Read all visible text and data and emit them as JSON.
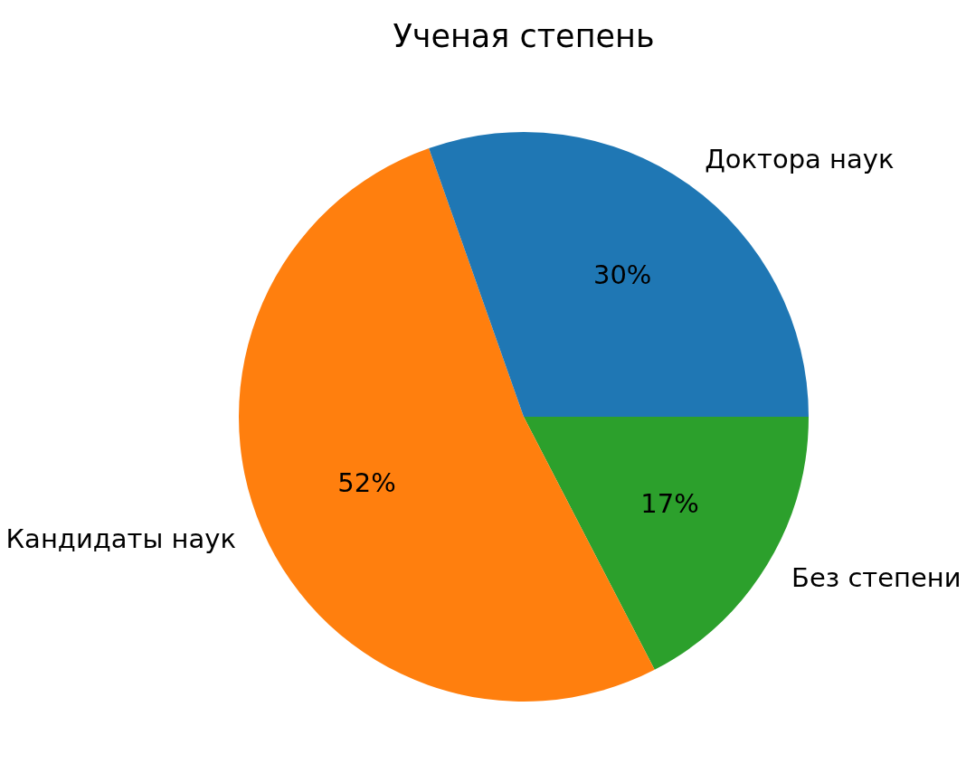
{
  "chart_data": {
    "type": "pie",
    "title": "Ученая степень",
    "categories": [
      "Доктора наук",
      "Кандидаты наук",
      "Без степени"
    ],
    "values": [
      30.4,
      52.2,
      17.4
    ],
    "colors": [
      "#1f77b4",
      "#ff7f0e",
      "#2ca02c"
    ],
    "value_labels": [
      "30%",
      "52%",
      "17%"
    ]
  }
}
